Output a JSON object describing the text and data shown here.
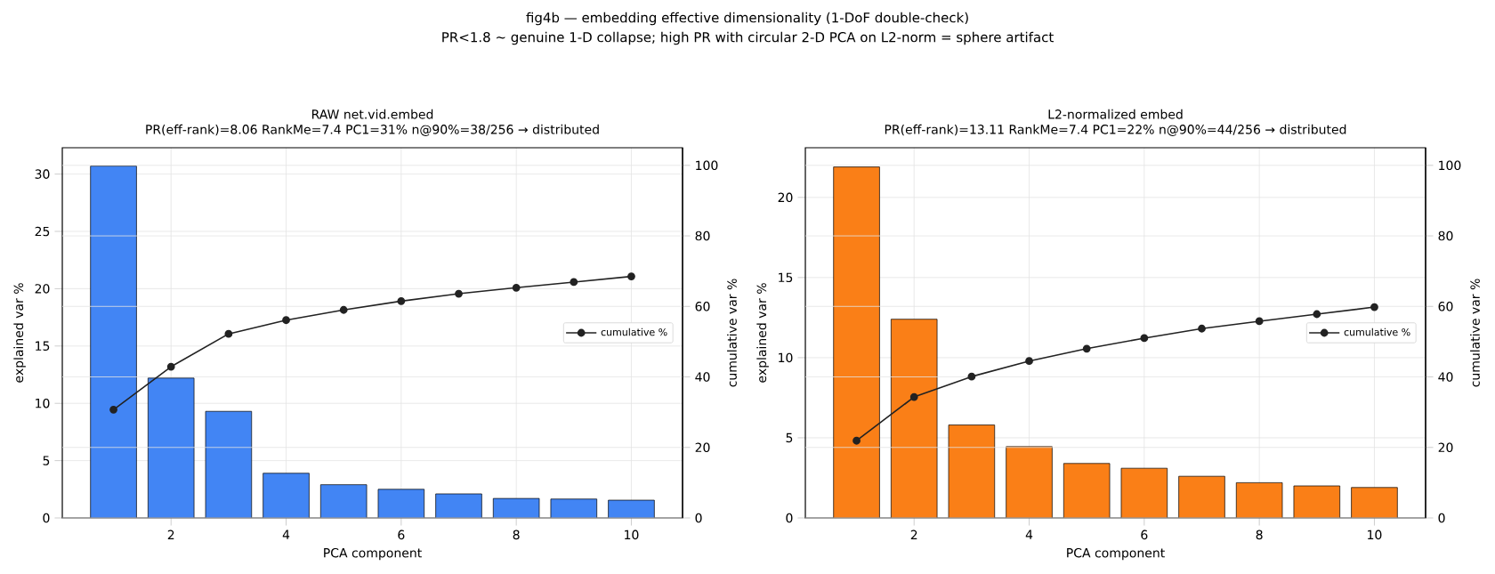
{
  "chart_data": [
    {
      "type": "bar",
      "title": "RAW net.vid.embed",
      "subtitle": "PR(eff-rank)=8.06  RankMe=7.4  PC1=31%  n@90%=38/256  → distributed",
      "annotations": [
        "fig4b — embedding effective dimensionality (1-DoF double-check)",
        "PR<1.8 ~ genuine 1-D collapse; high PR with circular 2-D PCA on L2-norm = sphere artifact"
      ],
      "xlabel": "PCA component",
      "ylabel": "explained var %",
      "y2label": "cumulative var %",
      "x": [
        1,
        2,
        3,
        4,
        5,
        6,
        7,
        8,
        9,
        10
      ],
      "xlim": [
        0.11,
        10.89
      ],
      "xticks": [
        2,
        4,
        6,
        8,
        10
      ],
      "ylim": [
        0,
        32.3
      ],
      "yticks": [
        0,
        5,
        10,
        15,
        20,
        25,
        30
      ],
      "y2lim": [
        0,
        105
      ],
      "y2ticks": [
        0,
        20,
        40,
        60,
        80,
        100
      ],
      "grid": true,
      "legend": "right",
      "marker": "circle",
      "series": [
        {
          "color": "#4285f4",
          "values": [
            30.7,
            12.2,
            9.3,
            3.9,
            2.9,
            2.5,
            2.1,
            1.7,
            1.65,
            1.55
          ]
        },
        {
          "type": "line",
          "name": "cumulative %",
          "color": "#222222",
          "axis": "y2",
          "values": [
            30.7,
            42.9,
            52.2,
            56.1,
            59.0,
            61.5,
            63.6,
            65.3,
            66.9,
            68.5
          ]
        }
      ]
    },
    {
      "type": "bar",
      "title": "L2-normalized embed",
      "subtitle": "PR(eff-rank)=13.11  RankMe=7.4  PC1=22%  n@90%=44/256  → distributed",
      "xlabel": "PCA component",
      "ylabel": "explained var %",
      "y2label": "cumulative var %",
      "x": [
        1,
        2,
        3,
        4,
        5,
        6,
        7,
        8,
        9,
        10
      ],
      "xlim": [
        0.11,
        10.89
      ],
      "xticks": [
        2,
        4,
        6,
        8,
        10
      ],
      "ylim": [
        0,
        23.1
      ],
      "yticks": [
        0,
        5,
        10,
        15,
        20
      ],
      "y2lim": [
        0,
        105
      ],
      "y2ticks": [
        0,
        20,
        40,
        60,
        80,
        100
      ],
      "grid": true,
      "legend": "right",
      "marker": "circle",
      "series": [
        {
          "color": "#fa7f17",
          "values": [
            21.9,
            12.4,
            5.8,
            4.45,
            3.4,
            3.1,
            2.6,
            2.2,
            2.0,
            1.9
          ]
        },
        {
          "type": "line",
          "name": "cumulative %",
          "color": "#222222",
          "axis": "y2",
          "values": [
            21.9,
            34.3,
            40.1,
            44.5,
            48.0,
            51.0,
            53.7,
            55.8,
            57.8,
            59.8
          ]
        }
      ]
    }
  ]
}
